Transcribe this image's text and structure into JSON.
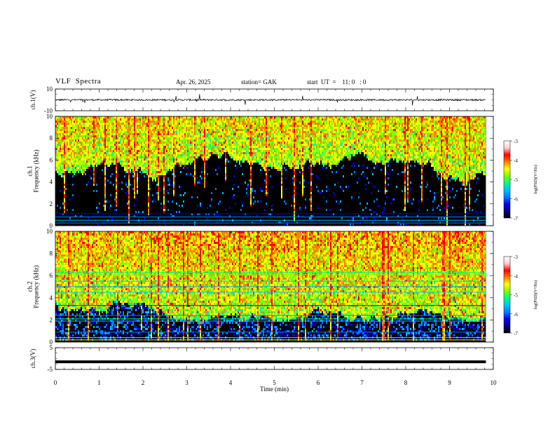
{
  "header": {
    "title": "VLF  Spectra",
    "date": "Apr. 26, 2025",
    "station": "station= GAK",
    "start": "start  UT  =    11: 0   : 0"
  },
  "colors": {
    "colormap": [
      "#000000",
      "#000080",
      "#0000ff",
      "#0080ff",
      "#00c0ff",
      "#00ff80",
      "#80ff00",
      "#ffff00",
      "#ff8000",
      "#ff0000",
      "#ffd0d0",
      "#ffffff"
    ]
  },
  "chart_data": [
    {
      "type": "line",
      "name": "ch1-waveform",
      "ylabel": "ch.1(V)",
      "ylim": [
        -10,
        10
      ],
      "yticks": [
        "10",
        "-10"
      ],
      "baseline": 0,
      "x_range_min": [
        0,
        9.83
      ]
    },
    {
      "type": "heatmap",
      "name": "ch1-spectrogram",
      "ylabel": "ch.1\nFrequency (kHz)",
      "ylim": [
        0,
        10
      ],
      "yticks": [
        "10",
        "8",
        "6",
        "4",
        "2",
        "0"
      ],
      "data_x_max_min": 9.83,
      "colorbar": {
        "label": "log(PSD)(V²/Hz)",
        "range": [
          -7,
          -3
        ],
        "ticks": [
          "-3",
          "-4",
          "-5",
          "-6",
          "-7"
        ]
      }
    },
    {
      "type": "heatmap",
      "name": "ch2-spectrogram",
      "ylabel": "ch.2\nFrequency (kHz)",
      "ylim": [
        0,
        10
      ],
      "yticks": [
        "10",
        "8",
        "6",
        "4",
        "2",
        "0"
      ],
      "data_x_max_min": 9.83,
      "colorbar": {
        "label": "log(PSD)(V²/Hz)",
        "range": [
          -7,
          -3
        ],
        "ticks": [
          "-3",
          "-4",
          "-5",
          "-6",
          "-7"
        ]
      }
    },
    {
      "type": "line",
      "name": "ch3-waveform",
      "ylabel": "ch.3(V)",
      "ylim": [
        -5,
        5
      ],
      "yticks": [
        "5",
        "-5"
      ],
      "baseline": -1.5
    }
  ],
  "xaxis": {
    "label": "Time  (min)",
    "range": [
      0,
      10
    ],
    "ticks": [
      "0",
      "1",
      "2",
      "3",
      "4",
      "5",
      "6",
      "7",
      "8",
      "9",
      "10"
    ]
  }
}
